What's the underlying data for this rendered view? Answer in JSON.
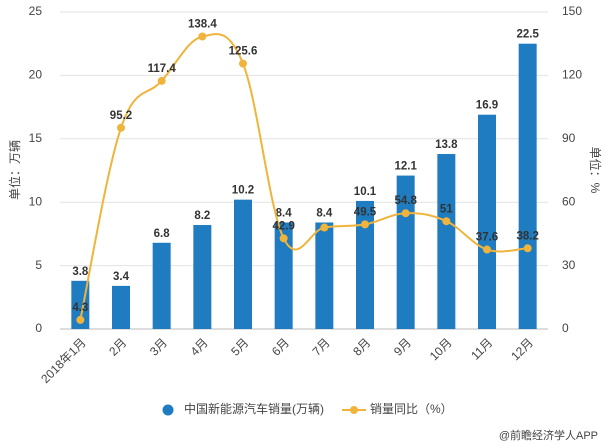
{
  "chart_data": {
    "type": "bar_line",
    "y_label": "单位：万辆",
    "y2_label": "单位：%",
    "categories": [
      "2018年1月",
      "2月",
      "3月",
      "4月",
      "5月",
      "6月",
      "7月",
      "8月",
      "9月",
      "10月",
      "11月",
      "12月"
    ],
    "series": [
      {
        "name": "中国新能源汽车销量(万辆)",
        "type": "bar",
        "color": "#1f7cc1",
        "values": [
          3.8,
          3.4,
          6.8,
          8.2,
          10.2,
          8.4,
          8.4,
          10.1,
          12.1,
          13.8,
          16.9,
          22.5
        ]
      },
      {
        "name": "销量同比（%）",
        "type": "line",
        "axis": "y2",
        "color": "#f0b43c",
        "values": [
          4.3,
          95.2,
          117.4,
          138.4,
          125.6,
          42.9,
          48,
          49.5,
          54.8,
          51,
          37.6,
          38.2
        ],
        "value_labels": [
          "4.3",
          "95.2",
          "117.4",
          "138.4",
          "125.6",
          "42.9",
          null,
          "49.5",
          "54.8",
          "51",
          "37.6",
          "38.2"
        ]
      }
    ],
    "ylim": [
      0,
      25
    ],
    "yticks": [
      0,
      5,
      10,
      15,
      20,
      25
    ],
    "y2lim": [
      0,
      150
    ],
    "y2ticks": [
      0,
      30,
      60,
      90,
      120,
      150
    ],
    "grid": true,
    "legend": "bottom",
    "footer": "@前瞻经济学人APP"
  }
}
